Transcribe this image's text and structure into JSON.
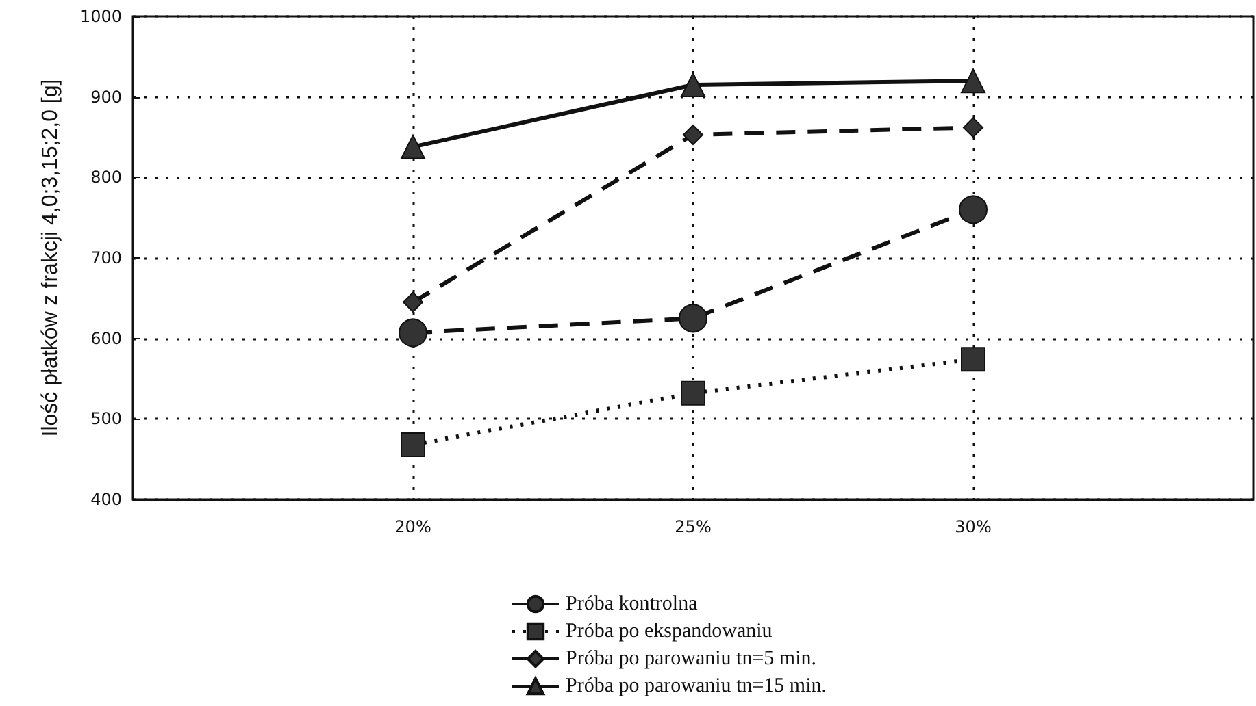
{
  "chart_data": {
    "type": "line",
    "ylabel": "Ilość płatków z frakcji 4,0;3,15;2,0 [g]",
    "categories": [
      "20%",
      "25%",
      "30%"
    ],
    "series": [
      {
        "name": "Próba kontrolna",
        "color": "#333333",
        "values": [
          607,
          625,
          760
        ],
        "marker": "circle",
        "line_style": "dashed"
      },
      {
        "name": "Próba po ekspandowaniu",
        "color": "#333333",
        "values": [
          468,
          532,
          574
        ],
        "marker": "square",
        "line_style": "dotted"
      },
      {
        "name": "Próba po parowaniu tn=5 min.",
        "color": "#333333",
        "values": [
          645,
          853,
          862
        ],
        "marker": "diamond",
        "line_style": "dashed"
      },
      {
        "name": "Próba po parowaniu tn=15 min.",
        "color": "#333333",
        "values": [
          838,
          915,
          920
        ],
        "marker": "triangle",
        "line_style": "solid"
      }
    ],
    "ylim": [
      400,
      1000
    ],
    "yticks": [
      400,
      500,
      600,
      700,
      800,
      900,
      1000
    ],
    "grid": true,
    "legend": "bottom"
  }
}
